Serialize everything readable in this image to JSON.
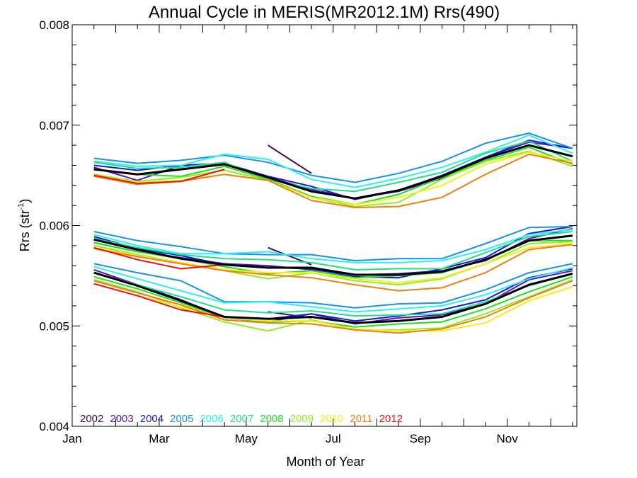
{
  "chart_data": {
    "type": "line",
    "title": "Annual Cycle in MERIS(MR2012.1M) Rrs(490)",
    "xlabel": "Month of Year",
    "ylabel": "Rrs (str",
    "ylabel_sup": "-1",
    "ylabel_close": ")",
    "xlim": [
      1,
      12.6
    ],
    "ylim": [
      0.004,
      0.008
    ],
    "xticks": [
      {
        "x": 1,
        "label": "Jan"
      },
      {
        "x": 3,
        "label": "Mar"
      },
      {
        "x": 5,
        "label": "May"
      },
      {
        "x": 7,
        "label": "Jul"
      },
      {
        "x": 9,
        "label": "Sep"
      },
      {
        "x": 11,
        "label": "Nov"
      }
    ],
    "yticks": [
      {
        "y": 0.004,
        "label": "0.004"
      },
      {
        "y": 0.005,
        "label": "0.005"
      },
      {
        "y": 0.006,
        "label": "0.006"
      },
      {
        "y": 0.007,
        "label": "0.007"
      },
      {
        "y": 0.008,
        "label": "0.008"
      }
    ],
    "x": [
      1.5,
      2.5,
      3.5,
      4.5,
      5.5,
      6.5,
      7.5,
      8.5,
      9.5,
      10.5,
      11.5,
      12.5
    ],
    "legend_position": "bottom-left",
    "groups": [
      "upper",
      "middle",
      "lower"
    ],
    "series": [
      {
        "name": "2002",
        "color": "#3a0a5a",
        "start_index": 4,
        "upper": [
          0.0068,
          0.00652
        ],
        "middle": [
          0.00578,
          0.00561
        ],
        "lower": [
          0.00514,
          0.00508
        ]
      },
      {
        "name": "2003",
        "color": "#5a12c8",
        "start_index": 0,
        "upper": [
          0.00658,
          0.00645,
          0.0066,
          0.00661,
          0.00648,
          0.00636,
          0.00627,
          0.00634,
          0.00647,
          0.00668,
          0.00683,
          0.00677
        ],
        "middle": [
          0.00583,
          0.00574,
          0.00568,
          0.00562,
          0.0056,
          0.00556,
          0.00551,
          0.00552,
          0.00555,
          0.00565,
          0.00587,
          0.00597
        ],
        "lower": [
          0.00556,
          0.00541,
          0.00526,
          0.00508,
          0.00504,
          0.00512,
          0.00502,
          0.00508,
          0.00511,
          0.00522,
          0.00546,
          0.00555
        ]
      },
      {
        "name": "2004",
        "color": "#1818e0",
        "start_index": 0,
        "upper": [
          0.0066,
          0.00655,
          0.0066,
          0.00662,
          0.00649,
          0.00639,
          0.00626,
          0.00635,
          0.0065,
          0.00668,
          0.00685,
          0.00677
        ],
        "middle": [
          0.00589,
          0.00577,
          0.0057,
          0.00561,
          0.00558,
          0.00557,
          0.00549,
          0.00548,
          0.00557,
          0.00568,
          0.00592,
          0.00599
        ],
        "lower": [
          0.00553,
          0.00541,
          0.00526,
          0.00509,
          0.00507,
          0.00512,
          0.00505,
          0.0051,
          0.00516,
          0.00526,
          0.00548,
          0.00557
        ]
      },
      {
        "name": "2005",
        "color": "#1890f0",
        "start_index": 0,
        "upper": [
          0.00667,
          0.00662,
          0.00665,
          0.0067,
          0.00663,
          0.0065,
          0.00643,
          0.00652,
          0.00664,
          0.00682,
          0.00692,
          0.00677
        ],
        "middle": [
          0.00594,
          0.00585,
          0.00579,
          0.00572,
          0.00571,
          0.00571,
          0.00565,
          0.00567,
          0.00567,
          0.00582,
          0.00598,
          0.00599
        ],
        "lower": [
          0.00562,
          0.00553,
          0.00545,
          0.00524,
          0.00524,
          0.00523,
          0.00518,
          0.00522,
          0.00523,
          0.00536,
          0.00553,
          0.00562
        ]
      },
      {
        "name": "2006",
        "color": "#2ef0f0",
        "start_index": 0,
        "upper": [
          0.00664,
          0.00659,
          0.0066,
          0.00671,
          0.00666,
          0.00646,
          0.00638,
          0.00647,
          0.00658,
          0.00673,
          0.0069,
          0.00672
        ],
        "middle": [
          0.00591,
          0.0058,
          0.00572,
          0.00572,
          0.00574,
          0.00567,
          0.00563,
          0.00563,
          0.00565,
          0.00576,
          0.00591,
          0.00596
        ],
        "lower": [
          0.00559,
          0.00547,
          0.00535,
          0.00523,
          0.00524,
          0.00519,
          0.00514,
          0.00517,
          0.0052,
          0.00531,
          0.00547,
          0.00558
        ]
      },
      {
        "name": "2007",
        "color": "#22e08a",
        "start_index": 0,
        "upper": [
          0.00663,
          0.00657,
          0.00658,
          0.00663,
          0.00646,
          0.00637,
          0.00634,
          0.00643,
          0.00653,
          0.00672,
          0.00684,
          0.00664
        ],
        "middle": [
          0.00587,
          0.00578,
          0.00571,
          0.00567,
          0.00566,
          0.00563,
          0.00556,
          0.00557,
          0.00557,
          0.00573,
          0.00589,
          0.00594
        ],
        "lower": [
          0.00553,
          0.00541,
          0.00529,
          0.00516,
          0.00513,
          0.00515,
          0.0051,
          0.00511,
          0.00512,
          0.00524,
          0.0054,
          0.00552
        ]
      },
      {
        "name": "2008",
        "color": "#20e020",
        "start_index": 0,
        "upper": [
          0.00656,
          0.00651,
          0.00649,
          0.00659,
          0.00646,
          0.00629,
          0.00621,
          0.00631,
          0.00648,
          0.00665,
          0.00678,
          0.00661
        ],
        "middle": [
          0.00583,
          0.00574,
          0.00567,
          0.00559,
          0.00552,
          0.00555,
          0.00548,
          0.0055,
          0.00553,
          0.00566,
          0.00585,
          0.00585
        ],
        "lower": [
          0.00549,
          0.00537,
          0.00523,
          0.00508,
          0.00504,
          0.00505,
          0.00499,
          0.00502,
          0.00504,
          0.00517,
          0.00534,
          0.00549
        ]
      },
      {
        "name": "2009",
        "color": "#8ef020",
        "start_index": 0,
        "upper": [
          0.00651,
          0.00644,
          0.00648,
          0.00655,
          0.00645,
          0.00628,
          0.00619,
          0.00623,
          0.00646,
          0.00664,
          0.00674,
          0.00659
        ],
        "middle": [
          0.0058,
          0.00571,
          0.00563,
          0.00555,
          0.00547,
          0.00553,
          0.00545,
          0.00541,
          0.00547,
          0.00562,
          0.00582,
          0.00584
        ],
        "lower": [
          0.00546,
          0.00534,
          0.00518,
          0.00504,
          0.00495,
          0.00506,
          0.00496,
          0.00496,
          0.00498,
          0.00512,
          0.00529,
          0.00546
        ]
      },
      {
        "name": "2010",
        "color": "#f0f018",
        "start_index": 0,
        "upper": [
          0.0065,
          0.00643,
          0.00645,
          0.00651,
          0.00645,
          0.00628,
          0.00621,
          0.00628,
          0.0064,
          0.00661,
          0.00673,
          0.00664
        ],
        "middle": [
          0.00578,
          0.0057,
          0.00563,
          0.00556,
          0.00553,
          0.00553,
          0.00547,
          0.00543,
          0.00548,
          0.00562,
          0.00578,
          0.00582
        ],
        "lower": [
          0.00542,
          0.0053,
          0.00519,
          0.00508,
          0.00505,
          0.00505,
          0.00497,
          0.00495,
          0.00495,
          0.00503,
          0.00525,
          0.00539
        ]
      },
      {
        "name": "2011",
        "color": "#f47c10",
        "start_index": 0,
        "upper": [
          0.00649,
          0.00641,
          0.00644,
          0.00651,
          0.00645,
          0.00625,
          0.00618,
          0.00619,
          0.00628,
          0.00651,
          0.00671,
          0.00662
        ],
        "middle": [
          0.00577,
          0.00569,
          0.00562,
          0.00555,
          0.00551,
          0.00548,
          0.00541,
          0.00535,
          0.00538,
          0.00553,
          0.00576,
          0.00581
        ],
        "lower": [
          0.00545,
          0.00533,
          0.00521,
          0.00506,
          0.00503,
          0.00502,
          0.00496,
          0.00493,
          0.00497,
          0.00509,
          0.00528,
          0.00545
        ]
      },
      {
        "name": "2012",
        "color": "#ee1010",
        "start_index": 0,
        "upper": [
          0.0065,
          0.00642,
          0.00644,
          0.00656
        ],
        "middle": [
          0.00578,
          0.00566,
          0.00557,
          0.00561
        ],
        "lower": [
          0.00542,
          0.0053,
          0.00516,
          0.00509
        ]
      }
    ],
    "mean": {
      "color": "#000000",
      "upper": [
        0.00656,
        0.00651,
        0.00656,
        0.00661,
        0.00648,
        0.00634,
        0.00627,
        0.00635,
        0.00649,
        0.00667,
        0.0068,
        0.00669
      ],
      "middle": [
        0.00586,
        0.00576,
        0.00567,
        0.00561,
        0.00558,
        0.00558,
        0.00551,
        0.00551,
        0.00554,
        0.00566,
        0.00585,
        0.0059
      ],
      "lower": [
        0.00553,
        0.0054,
        0.00525,
        0.00509,
        0.00507,
        0.00509,
        0.00503,
        0.00505,
        0.00509,
        0.00522,
        0.00541,
        0.00552
      ]
    }
  }
}
